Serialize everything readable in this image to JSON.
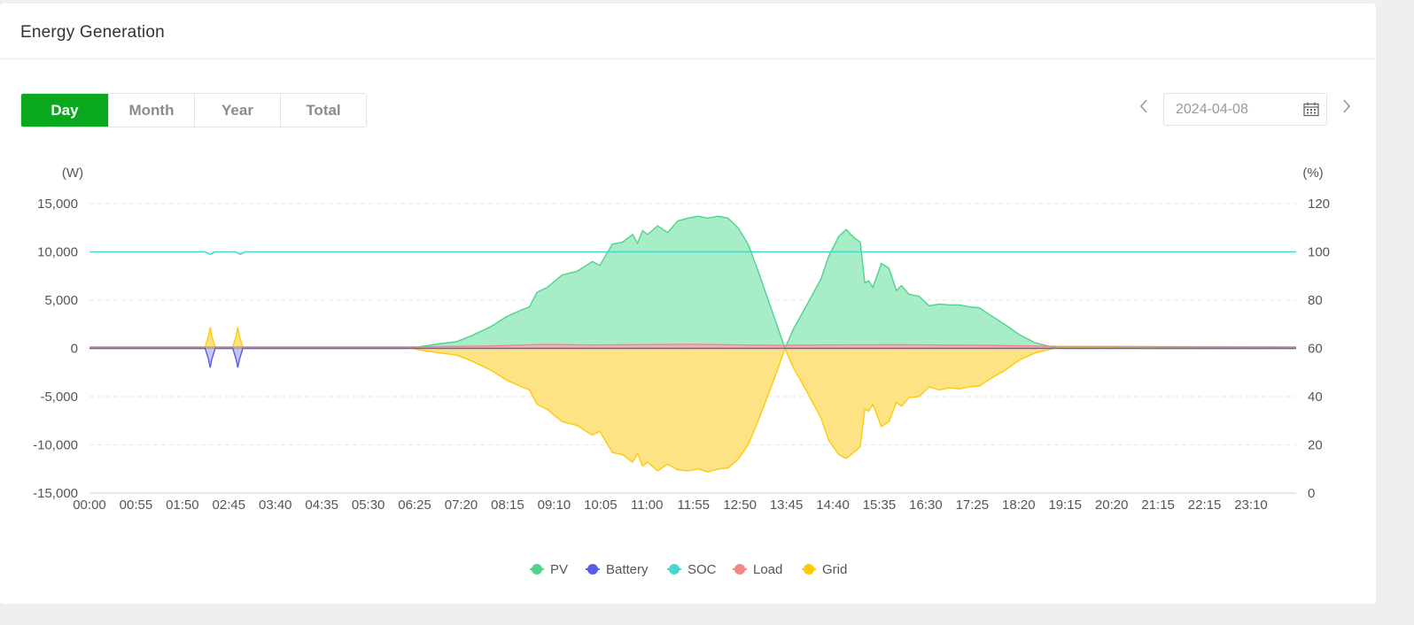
{
  "header": {
    "title": "Energy Generation"
  },
  "tabs": [
    {
      "label": "Day",
      "active": true
    },
    {
      "label": "Month",
      "active": false
    },
    {
      "label": "Year",
      "active": false
    },
    {
      "label": "Total",
      "active": false
    }
  ],
  "date_picker": {
    "value": "2024-04-08",
    "prev_icon": "chevron-left-icon",
    "next_icon": "chevron-right-icon",
    "calendar_icon": "calendar-icon"
  },
  "chart_data": {
    "type": "area",
    "left_axis": {
      "unit": "(W)",
      "range": [
        -15000,
        15000
      ],
      "ticks": [
        -15000,
        -10000,
        -5000,
        0,
        5000,
        10000,
        15000
      ],
      "tick_labels": [
        "-15,000",
        "-10,000",
        "-5,000",
        "0",
        "5,000",
        "10,000",
        "15,000"
      ]
    },
    "right_axis": {
      "unit": "(%)",
      "range": [
        0,
        120
      ],
      "ticks": [
        0,
        20,
        40,
        60,
        80,
        100,
        120
      ],
      "tick_labels": [
        "0",
        "20",
        "40",
        "60",
        "80",
        "100",
        "120"
      ]
    },
    "x_tick_labels": [
      "00:00",
      "00:55",
      "01:50",
      "02:45",
      "03:40",
      "04:35",
      "05:30",
      "06:25",
      "07:20",
      "08:15",
      "09:10",
      "10:05",
      "11:00",
      "11:55",
      "12:50",
      "13:45",
      "14:40",
      "15:35",
      "16:30",
      "17:25",
      "18:20",
      "19:15",
      "20:20",
      "21:15",
      "22:15",
      "23:10"
    ],
    "grid": true,
    "legend_position": "bottom-center",
    "series": [
      {
        "name": "PV",
        "color": "#4fd38a",
        "fill": "#a2ecc4",
        "axis": "left",
        "points": [
          [
            0,
            0
          ],
          [
            6.3,
            0
          ],
          [
            6.6,
            200
          ],
          [
            7.0,
            500
          ],
          [
            7.3,
            700
          ],
          [
            7.6,
            1300
          ],
          [
            8.0,
            2300
          ],
          [
            8.3,
            3300
          ],
          [
            8.6,
            4000
          ],
          [
            8.75,
            4300
          ],
          [
            8.9,
            5800
          ],
          [
            9.1,
            6300
          ],
          [
            9.4,
            7600
          ],
          [
            9.7,
            8000
          ],
          [
            10.0,
            9000
          ],
          [
            10.15,
            8600
          ],
          [
            10.4,
            10800
          ],
          [
            10.6,
            11000
          ],
          [
            10.8,
            11800
          ],
          [
            10.9,
            10900
          ],
          [
            11.0,
            12200
          ],
          [
            11.1,
            11800
          ],
          [
            11.3,
            12700
          ],
          [
            11.5,
            12000
          ],
          [
            11.7,
            13200
          ],
          [
            11.9,
            13500
          ],
          [
            12.1,
            13700
          ],
          [
            12.3,
            13500
          ],
          [
            12.5,
            13700
          ],
          [
            12.7,
            13500
          ],
          [
            12.9,
            12500
          ],
          [
            13.1,
            10800
          ],
          [
            13.3,
            8000
          ],
          [
            13.5,
            5000
          ],
          [
            13.7,
            2000
          ],
          [
            13.83,
            0
          ],
          [
            14.0,
            2000
          ],
          [
            14.3,
            4800
          ],
          [
            14.55,
            7200
          ],
          [
            14.7,
            9500
          ],
          [
            14.9,
            11600
          ],
          [
            15.05,
            12300
          ],
          [
            15.2,
            11500
          ],
          [
            15.33,
            11000
          ],
          [
            15.42,
            6800
          ],
          [
            15.5,
            7000
          ],
          [
            15.58,
            6300
          ],
          [
            15.75,
            8800
          ],
          [
            15.9,
            8300
          ],
          [
            16.05,
            6000
          ],
          [
            16.15,
            6500
          ],
          [
            16.3,
            5600
          ],
          [
            16.5,
            5400
          ],
          [
            16.7,
            4400
          ],
          [
            16.9,
            4600
          ],
          [
            17.1,
            4500
          ],
          [
            17.3,
            4500
          ],
          [
            17.5,
            4300
          ],
          [
            17.7,
            4200
          ],
          [
            17.9,
            3500
          ],
          [
            18.2,
            2500
          ],
          [
            18.5,
            1400
          ],
          [
            18.8,
            600
          ],
          [
            19.1,
            200
          ],
          [
            19.3,
            0
          ],
          [
            24,
            0
          ]
        ]
      },
      {
        "name": "Battery",
        "color": "#5a5ce8",
        "axis": "left",
        "points": [
          [
            0,
            0
          ],
          [
            2.3,
            0
          ],
          [
            2.37,
            -1200
          ],
          [
            2.4,
            -2000
          ],
          [
            2.43,
            -1200
          ],
          [
            2.5,
            0
          ],
          [
            2.85,
            0
          ],
          [
            2.92,
            -1200
          ],
          [
            2.95,
            -2000
          ],
          [
            2.98,
            -1200
          ],
          [
            3.05,
            0
          ],
          [
            24,
            0
          ]
        ]
      },
      {
        "name": "SOC",
        "color": "#46d8cf",
        "axis": "right",
        "points": [
          [
            0,
            100
          ],
          [
            2.3,
            100
          ],
          [
            2.4,
            99
          ],
          [
            2.5,
            100
          ],
          [
            2.9,
            100
          ],
          [
            3.0,
            99
          ],
          [
            3.1,
            100
          ],
          [
            24,
            100
          ]
        ]
      },
      {
        "name": "Load",
        "color": "#f38686",
        "fill": "#f7b0b0",
        "axis": "left",
        "points": [
          [
            0,
            150
          ],
          [
            6.3,
            150
          ],
          [
            8.0,
            250
          ],
          [
            9.0,
            400
          ],
          [
            10.0,
            350
          ],
          [
            12.0,
            420
          ],
          [
            13.7,
            300
          ],
          [
            14.5,
            350
          ],
          [
            16.0,
            380
          ],
          [
            18.0,
            300
          ],
          [
            19.3,
            200
          ],
          [
            24,
            150
          ]
        ]
      },
      {
        "name": "Grid",
        "color": "#ffc90a",
        "fill": "#fee27e",
        "axis": "left",
        "points": [
          [
            0,
            150
          ],
          [
            2.3,
            150
          ],
          [
            2.37,
            1300
          ],
          [
            2.4,
            2200
          ],
          [
            2.43,
            1300
          ],
          [
            2.5,
            150
          ],
          [
            2.85,
            150
          ],
          [
            2.92,
            1300
          ],
          [
            2.95,
            2200
          ],
          [
            2.98,
            1300
          ],
          [
            3.05,
            150
          ],
          [
            6.3,
            150
          ],
          [
            6.6,
            -200
          ],
          [
            7.0,
            -500
          ],
          [
            7.3,
            -700
          ],
          [
            7.6,
            -1300
          ],
          [
            8.0,
            -2300
          ],
          [
            8.3,
            -3300
          ],
          [
            8.6,
            -4000
          ],
          [
            8.75,
            -4300
          ],
          [
            8.9,
            -5800
          ],
          [
            9.1,
            -6300
          ],
          [
            9.4,
            -7600
          ],
          [
            9.7,
            -8000
          ],
          [
            10.0,
            -9000
          ],
          [
            10.15,
            -8600
          ],
          [
            10.4,
            -10800
          ],
          [
            10.6,
            -11000
          ],
          [
            10.8,
            -11800
          ],
          [
            10.9,
            -10900
          ],
          [
            11.0,
            -12200
          ],
          [
            11.1,
            -11800
          ],
          [
            11.3,
            -12700
          ],
          [
            11.5,
            -12000
          ],
          [
            11.7,
            -12600
          ],
          [
            11.9,
            -12700
          ],
          [
            12.1,
            -12500
          ],
          [
            12.3,
            -12800
          ],
          [
            12.5,
            -12500
          ],
          [
            12.7,
            -12400
          ],
          [
            12.9,
            -11500
          ],
          [
            13.1,
            -10000
          ],
          [
            13.3,
            -7500
          ],
          [
            13.5,
            -4800
          ],
          [
            13.7,
            -2000
          ],
          [
            13.83,
            0
          ],
          [
            14.0,
            -2000
          ],
          [
            14.3,
            -4800
          ],
          [
            14.55,
            -7200
          ],
          [
            14.7,
            -9500
          ],
          [
            14.9,
            -11000
          ],
          [
            15.05,
            -11400
          ],
          [
            15.2,
            -10800
          ],
          [
            15.33,
            -10200
          ],
          [
            15.42,
            -6300
          ],
          [
            15.5,
            -6500
          ],
          [
            15.58,
            -5800
          ],
          [
            15.75,
            -8100
          ],
          [
            15.9,
            -7600
          ],
          [
            16.05,
            -5600
          ],
          [
            16.15,
            -6000
          ],
          [
            16.3,
            -5100
          ],
          [
            16.5,
            -5000
          ],
          [
            16.7,
            -4000
          ],
          [
            16.9,
            -4300
          ],
          [
            17.1,
            -4100
          ],
          [
            17.3,
            -4200
          ],
          [
            17.5,
            -4000
          ],
          [
            17.7,
            -3900
          ],
          [
            17.9,
            -3200
          ],
          [
            18.2,
            -2300
          ],
          [
            18.5,
            -1200
          ],
          [
            18.8,
            -500
          ],
          [
            19.1,
            -100
          ],
          [
            19.3,
            150
          ],
          [
            24,
            150
          ]
        ]
      }
    ]
  }
}
